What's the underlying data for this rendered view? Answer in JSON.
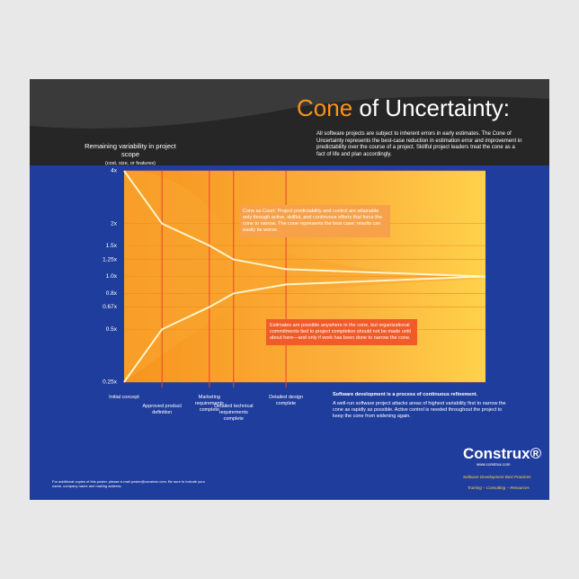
{
  "header": {
    "title_highlight": "Cone",
    "title_rest": "of Uncertainty:",
    "description": "All software projects are subject to inherent errors in early estimates. The Cone of Uncertainty represents the best-case reduction in estimation error and improvement in predictability over the course of a project. Skillful project leaders treat the cone as a fact of life and plan accordingly."
  },
  "chart_data": {
    "type": "line",
    "y_label": "Remaining variability in project scope",
    "y_sublabel": "(cost, size, or features)",
    "categories": [
      "Initial concept",
      "Approved product definition",
      "Marketing requirements complete",
      "Detailed technical requirements complete",
      "Detailed design complete",
      null
    ],
    "series": [
      {
        "name": "Upper bound",
        "color": "#fff4c8",
        "values": [
          4,
          2,
          1.5,
          1.25,
          1.1,
          1.0
        ]
      },
      {
        "name": "Lower bound",
        "color": "#fff4c8",
        "values": [
          0.25,
          0.5,
          0.67,
          0.8,
          0.9,
          1.0
        ]
      }
    ],
    "ylim": [
      0.25,
      4
    ],
    "log_scale": true,
    "grid": true,
    "yticks": [
      {
        "value": 0.25,
        "label": "0.25x"
      },
      {
        "value": 0.5,
        "label": "0.5x"
      },
      {
        "value": 0.67,
        "label": "0.67x"
      },
      {
        "value": 0.8,
        "label": "0.8x"
      },
      {
        "value": 1.0,
        "label": "1.0x"
      },
      {
        "value": 1.25,
        "label": "1.25x"
      },
      {
        "value": 1.5,
        "label": "1.5x"
      },
      {
        "value": 2,
        "label": "2x"
      },
      {
        "value": 4,
        "label": "4x"
      }
    ],
    "annotations": [
      "Cone as Court: Project predictability and control are attainable only through active, skillful, and continuous efforts that force the cone to narrow. The cone represents the best case; results can easily be worse.",
      "Estimates are possible anywhere in the cone, but organizational commitments tied to project completion should not be made until about here—and only if work has been done to narrow the cone."
    ]
  },
  "footer": {
    "refinement_title": "Software development is a process of continuous refinement.",
    "refinement_text": "A well-run software project attacks areas of highest variability first to narrow the cone as rapidly as possible. Active control is needed throughout the project to keep the cone from widening again.",
    "copies": "For additional copies of this poster, please e-mail poster@construx.com. Be sure to include your name, company name and mailing address.",
    "logo": "Construx®",
    "url": "www.construx.com",
    "tagline": "Software Development Best Practices",
    "services": "Training – Consulting – Resources"
  }
}
